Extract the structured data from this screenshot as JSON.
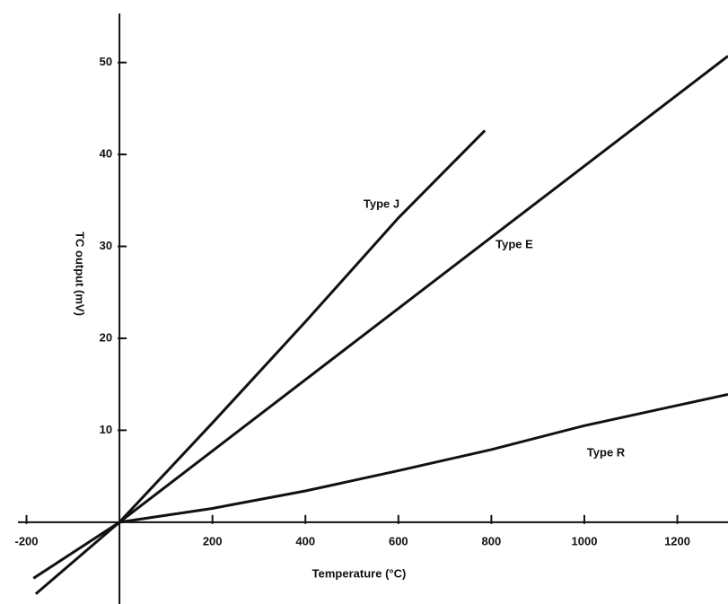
{
  "chart_data": {
    "type": "line",
    "x_label": "Temperature (°C)",
    "y_label": "TC output (mV)",
    "xlim": [
      -257,
      1309
    ],
    "ylim": [
      -8.9,
      56.8
    ],
    "xticks": [
      -200,
      200,
      400,
      600,
      800,
      1000,
      1200
    ],
    "yticks": [
      10,
      20,
      30,
      40,
      50
    ],
    "color": "#111111",
    "series": [
      {
        "name": "Type J",
        "x": [
          -185,
          0,
          200,
          400,
          600,
          786
        ],
        "values": [
          -6.1,
          0,
          10.8,
          21.8,
          33.1,
          42.6
        ]
      },
      {
        "name": "Type E",
        "x": [
          -180,
          0,
          400,
          800,
          1309
        ],
        "values": [
          -7.8,
          0,
          15.5,
          31,
          50.7
        ]
      },
      {
        "name": "Type R",
        "x": [
          0,
          200,
          400,
          600,
          800,
          1000,
          1309
        ],
        "values": [
          0,
          1.5,
          3.4,
          5.6,
          7.9,
          10.5,
          13.9
        ]
      }
    ]
  }
}
